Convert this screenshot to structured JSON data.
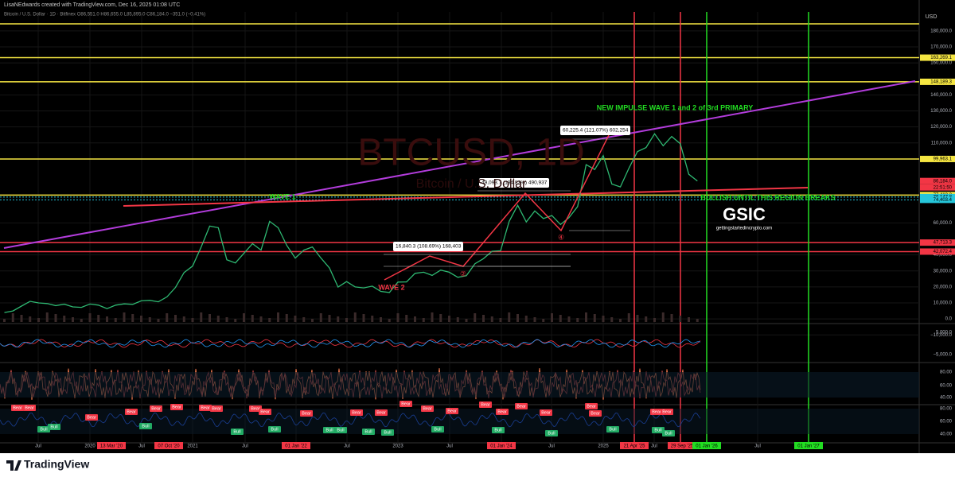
{
  "header": {
    "creator": "LisaNEdwards created with TradingView.com, Dec 16, 2025 01:08 UTC",
    "symbol": "Bitcoin / U.S. Dollar · 1D · Bitfinex  O86,551.0 H86,655.0 L85,895.0 C86,184.0 −351.0 (−0.41%)"
  },
  "watermark": {
    "symbol": "BTCUSD, 1D",
    "name": "Bitcoin / U.S. Dollar"
  },
  "price_axis": {
    "currency": "USD",
    "ticks": [
      {
        "value": 180000,
        "label": "180,000.0"
      },
      {
        "value": 170000,
        "label": "170,000.0"
      },
      {
        "value": 160000,
        "label": "160,000.0"
      },
      {
        "value": 140000,
        "label": "140,000.0"
      },
      {
        "value": 130000,
        "label": "130,000.0"
      },
      {
        "value": 120000,
        "label": "120,000.0"
      },
      {
        "value": 110000,
        "label": "110,000.0"
      },
      {
        "value": 60000,
        "label": "60,000.0"
      },
      {
        "value": 40000,
        "label": "40,000.0"
      },
      {
        "value": 30000,
        "label": "30,000.0"
      },
      {
        "value": 20000,
        "label": "20,000.0"
      },
      {
        "value": 10000,
        "label": "10,000.0"
      },
      {
        "value": 0,
        "label": "0.0"
      },
      {
        "value": -10000,
        "label": "−10,000.0"
      }
    ],
    "tags": [
      {
        "value": 163269.1,
        "label": "163,269.1",
        "color": "#f5e642"
      },
      {
        "value": 148189.3,
        "label": "148,189.3",
        "color": "#f5e642"
      },
      {
        "value": 99963.1,
        "label": "99,963.1",
        "color": "#f5e642"
      },
      {
        "value": 86184.0,
        "label": "86,184.0",
        "color": "#f23645"
      },
      {
        "value": 77413.2,
        "label": "77,413.2",
        "color": "#f5e642"
      },
      {
        "value": 76147.8,
        "label": "76,147.8",
        "color": "#26c6da"
      },
      {
        "value": 74403.4,
        "label": "74,403.4",
        "color": "#26c6da"
      },
      {
        "value": 47713.3,
        "label": "47,713.3",
        "color": "#f23645"
      },
      {
        "value": 42072.4,
        "label": "42,072.4",
        "color": "#f23645"
      }
    ],
    "countdown": "22:51:50"
  },
  "price": {
    "values": [
      4000,
      5000,
      8000,
      11000,
      10000,
      9600,
      8300,
      9200,
      7500,
      7200,
      9300,
      8600,
      6400,
      8600,
      9400,
      9100,
      11300,
      11600,
      10700,
      13800,
      19700,
      29000,
      33000,
      45000,
      58000,
      57000,
      37000,
      35000,
      41000,
      47000,
      43000,
      61000,
      57000,
      46000,
      38000,
      43000,
      45000,
      38000,
      31800,
      19900,
      23300,
      20000,
      19400,
      20500,
      17200,
      16500,
      23000,
      23100,
      28500,
      29200,
      27200,
      30500,
      29200,
      26000,
      27000,
      34500,
      37700,
      42300,
      42600,
      61000,
      71000,
      60600,
      67500,
      62700,
      64600,
      59000,
      63300,
      70200,
      96400,
      93400,
      102000,
      84300,
      82500,
      94200,
      104600,
      107100,
      115700,
      108200,
      114000,
      109500,
      90400,
      86200
    ]
  },
  "panes": [
    {
      "labels": [
        "5,000.0",
        "−5,000.0"
      ]
    },
    {
      "labels": [
        "80.00",
        "60.00",
        "40.00"
      ]
    },
    {
      "labels": [
        "80.00",
        "60.00",
        "40.00"
      ]
    }
  ],
  "time_axis": [
    {
      "label": "Jul"
    },
    {
      "label": "2020"
    },
    {
      "label": "13 Mar '20",
      "highlight": "red"
    },
    {
      "label": "Jul"
    },
    {
      "label": "07 Oct '20",
      "highlight": "red"
    },
    {
      "label": "2021"
    },
    {
      "label": "Jul"
    },
    {
      "label": "01 Jan '22",
      "highlight": "red"
    },
    {
      "label": "Jul"
    },
    {
      "label": "2023"
    },
    {
      "label": "Jul"
    },
    {
      "label": "01 Jan '24",
      "highlight": "red"
    },
    {
      "label": "Jul"
    },
    {
      "label": "2025"
    },
    {
      "label": "21 Apr '25",
      "highlight": "red"
    },
    {
      "label": "Jul"
    },
    {
      "label": "29 Sep '25",
      "highlight": "red"
    },
    {
      "label": "01 Jan '26",
      "highlight": "green"
    },
    {
      "label": "Jul"
    },
    {
      "label": "01 Jan '27",
      "highlight": "green"
    }
  ],
  "annotations": {
    "wave1": "WAVE 1",
    "wave2": "WAVE 2",
    "impulse": "NEW IMPULSE WAVE 1 and 2 of 3rd PRIMARY",
    "bullish": "BULLISH UNTIL THIS REGION BREAKS",
    "measure1": "16,840.3 (108.69%) 168,403",
    "measure2": "49,093.7 (194.83%) 490,937",
    "measure3": "60,225.4 (121.07%) 602,254",
    "point2": "②",
    "point4": "④"
  },
  "logo": {
    "name": "GSIC",
    "site": "gettingstartedincrypto.com"
  },
  "signals": [
    "Bear",
    "Bear",
    "Bull",
    "Bull",
    "Bear",
    "Bear",
    "Bull",
    "Bear",
    "Bear",
    "Bear",
    "Bear",
    "Bull",
    "Bear",
    "Bear",
    "Bull",
    "Bear",
    "Bull",
    "Bull",
    "Bear",
    "Bear",
    "Bull",
    "Bull",
    "Bear",
    "Bear",
    "Bull",
    "Bear",
    "Bear",
    "Bear",
    "Bear",
    "Bull",
    "Bear",
    "Bull",
    "Bear",
    "Bear",
    "Bull",
    "Bear",
    "Bear",
    "Bull",
    "Bull"
  ],
  "footer": "TradingView"
}
